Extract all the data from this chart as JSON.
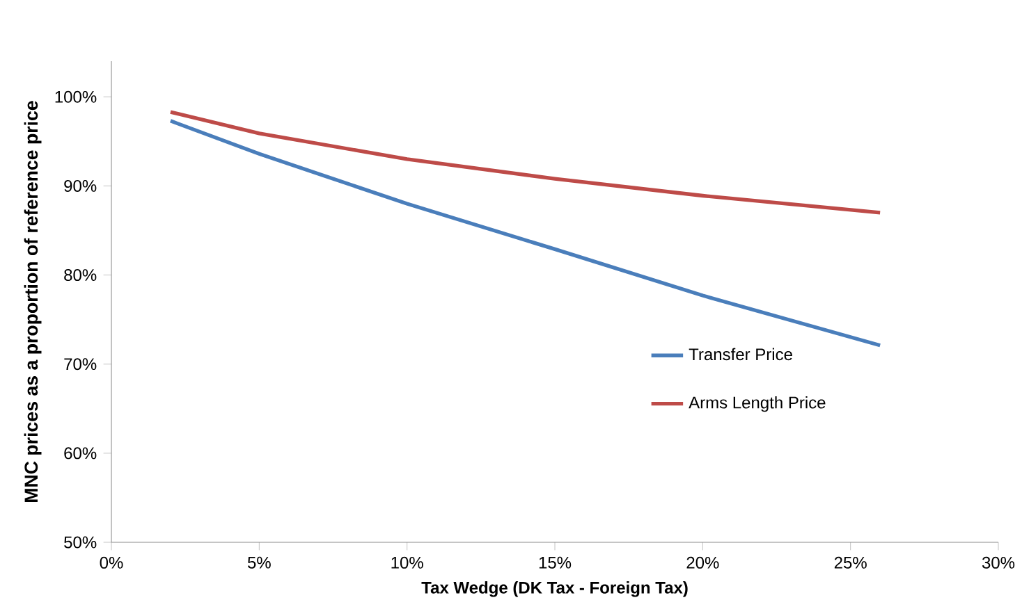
{
  "chart_data": {
    "type": "line",
    "xlabel": "Tax Wedge (DK Tax - Foreign Tax)",
    "ylabel": "MNC prices as a proportion of reference price",
    "xlim": [
      0,
      30
    ],
    "ylim": [
      50,
      104
    ],
    "xticks": [
      {
        "value": 0,
        "label": "0%"
      },
      {
        "value": 5,
        "label": "5%"
      },
      {
        "value": 10,
        "label": "10%"
      },
      {
        "value": 15,
        "label": "15%"
      },
      {
        "value": 20,
        "label": "20%"
      },
      {
        "value": 25,
        "label": "25%"
      },
      {
        "value": 30,
        "label": "30%"
      }
    ],
    "yticks": [
      {
        "value": 50,
        "label": "50%"
      },
      {
        "value": 60,
        "label": "60%"
      },
      {
        "value": 70,
        "label": "70%"
      },
      {
        "value": 80,
        "label": "80%"
      },
      {
        "value": 90,
        "label": "90%"
      },
      {
        "value": 100,
        "label": "100%"
      }
    ],
    "x": [
      2,
      5,
      10,
      15,
      20,
      26
    ],
    "series": [
      {
        "name": "Transfer Price",
        "color": "#4a7ebb",
        "values": [
          97.3,
          93.6,
          88.0,
          82.9,
          77.7,
          72.1
        ]
      },
      {
        "name": "Arms Length Price",
        "color": "#be4b48",
        "values": [
          98.3,
          95.9,
          93.0,
          90.8,
          88.9,
          87.0
        ]
      }
    ],
    "legend": "right",
    "grid": false,
    "line_style": "solid"
  }
}
